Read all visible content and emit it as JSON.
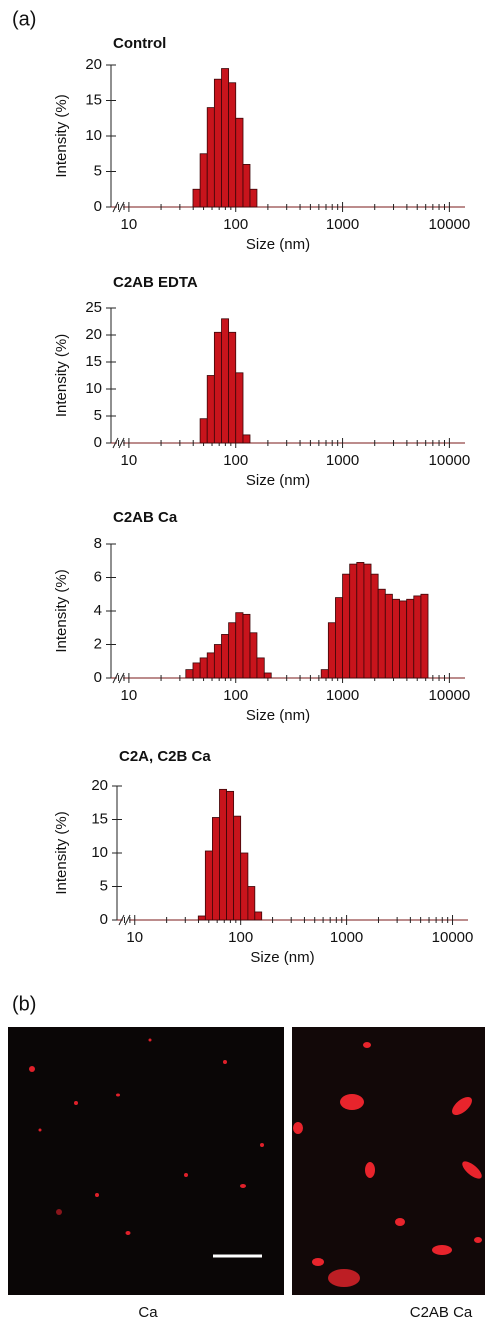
{
  "panel_a": {
    "label": "(a)"
  },
  "chart_data": [
    {
      "type": "histogram",
      "title": "Control",
      "xlabel": "Size (nm)",
      "ylabel": "Intensity (%)",
      "xscale": "log",
      "color": "#c8141c",
      "bins": [
        39.8,
        46.4,
        54.1,
        63.1,
        73.6,
        85.8,
        100,
        117,
        136,
        158
      ],
      "values": [
        2.5,
        7.5,
        14,
        18,
        19.5,
        17.5,
        12.5,
        6,
        2.5
      ],
      "xlim": [
        6.8,
        14000
      ],
      "ylim": [
        0,
        20
      ],
      "xticks": [
        10,
        100,
        1000,
        10000
      ],
      "xminorticks": [
        8,
        9,
        20,
        30,
        40,
        50,
        60,
        70,
        80,
        90,
        200,
        300,
        400,
        500,
        600,
        700,
        800,
        900,
        2000,
        3000,
        4000,
        5000,
        6000,
        7000,
        8000,
        9000
      ],
      "yticks": [
        0,
        5,
        10,
        15,
        20
      ]
    },
    {
      "type": "histogram",
      "title": "C2AB EDTA",
      "xlabel": "Size (nm)",
      "ylabel": "Intensity (%)",
      "xscale": "log",
      "color": "#c8141c",
      "bins": [
        46.4,
        54.1,
        63.1,
        73.6,
        85.8,
        100,
        117,
        136
      ],
      "values": [
        4.5,
        12.5,
        20.5,
        23,
        20.5,
        13,
        1.5
      ],
      "xlim": [
        6.8,
        14000
      ],
      "ylim": [
        0,
        25
      ],
      "xticks": [
        10,
        100,
        1000,
        10000
      ],
      "xminorticks": [
        8,
        9,
        20,
        30,
        40,
        50,
        60,
        70,
        80,
        90,
        200,
        300,
        400,
        500,
        600,
        700,
        800,
        900,
        2000,
        3000,
        4000,
        5000,
        6000,
        7000,
        8000,
        9000
      ],
      "yticks": [
        0,
        5,
        10,
        15,
        20,
        25
      ]
    },
    {
      "type": "histogram",
      "title": "C2AB Ca",
      "xlabel": "Size (nm)",
      "ylabel": "Intensity (%)",
      "xscale": "log",
      "color": "#c8141c",
      "bins": [
        34.1,
        39.8,
        46.4,
        54.1,
        63.1,
        73.6,
        85.8,
        100,
        117,
        136,
        158,
        185,
        215,
        251,
        293,
        341,
        398,
        464,
        541,
        631,
        736,
        858,
        1000,
        1166,
        1359,
        1585,
        1848,
        2154,
        2512,
        2929,
        3415,
        3981,
        4642,
        5412,
        6310
      ],
      "values": [
        0.5,
        0.9,
        1.2,
        1.5,
        2.0,
        2.6,
        3.3,
        3.9,
        3.8,
        2.7,
        1.2,
        0.3,
        0,
        0,
        0,
        0,
        0,
        0,
        0,
        0.5,
        3.3,
        4.8,
        6.2,
        6.8,
        6.9,
        6.8,
        6.2,
        5.3,
        5.0,
        4.7,
        4.6,
        4.7,
        4.9,
        5.0
      ],
      "xlim": [
        6.8,
        14000
      ],
      "ylim": [
        0,
        8
      ],
      "xticks": [
        10,
        100,
        1000,
        10000
      ],
      "xminorticks": [
        8,
        9,
        20,
        30,
        40,
        50,
        60,
        70,
        80,
        90,
        200,
        300,
        400,
        500,
        600,
        700,
        800,
        900,
        2000,
        3000,
        4000,
        5000,
        6000,
        7000,
        8000,
        9000
      ],
      "yticks": [
        0,
        2,
        4,
        6,
        8
      ]
    },
    {
      "type": "histogram",
      "title": "C2A, C2B Ca",
      "xlabel": "Size (nm)",
      "ylabel": "Intensity (%)",
      "xscale": "log",
      "color": "#c8141c",
      "bins": [
        39.8,
        46.4,
        54.1,
        63.1,
        73.6,
        85.8,
        100,
        117,
        136,
        158
      ],
      "values": [
        0.6,
        10.3,
        15.3,
        19.5,
        19.2,
        15.5,
        10,
        5,
        1.2
      ],
      "xlim": [
        6.8,
        14000
      ],
      "ylim": [
        0,
        20
      ],
      "xticks": [
        10,
        100,
        1000,
        10000
      ],
      "xminorticks": [
        8,
        9,
        20,
        30,
        40,
        50,
        60,
        70,
        80,
        90,
        200,
        300,
        400,
        500,
        600,
        700,
        800,
        900,
        2000,
        3000,
        4000,
        5000,
        6000,
        7000,
        8000,
        9000
      ],
      "yticks": [
        0,
        5,
        10,
        15,
        20
      ]
    }
  ],
  "panel_b": {
    "label": "(b)",
    "images": [
      {
        "caption": "Ca"
      },
      {
        "caption": "C2AB Ca"
      }
    ]
  }
}
